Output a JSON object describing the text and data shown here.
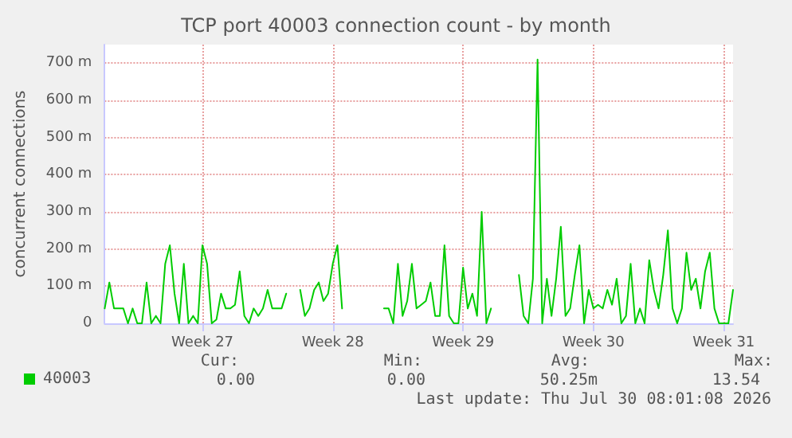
{
  "chart_data": {
    "type": "line",
    "title": "TCP port 40003 connection count - by month",
    "ylabel": "concurrent connections",
    "categories": [
      null,
      null,
      null,
      null,
      null,
      null,
      null,
      null,
      null,
      null,
      null,
      null,
      null,
      null,
      null,
      null,
      null,
      null,
      null,
      null,
      null,
      "Week 27",
      null,
      null,
      null,
      null,
      null,
      null,
      null,
      null,
      null,
      null,
      null,
      null,
      null,
      null,
      null,
      null,
      null,
      null,
      null,
      null,
      null,
      null,
      null,
      null,
      null,
      null,
      null,
      "Week 28",
      null,
      null,
      null,
      null,
      null,
      null,
      null,
      null,
      null,
      null,
      null,
      null,
      null,
      null,
      null,
      null,
      null,
      null,
      null,
      null,
      null,
      null,
      null,
      null,
      null,
      null,
      null,
      "Week 29",
      null,
      null,
      null,
      null,
      null,
      null,
      null,
      null,
      null,
      null,
      null,
      null,
      null,
      null,
      null,
      null,
      null,
      null,
      null,
      null,
      null,
      null,
      null,
      null,
      null,
      null,
      null,
      "Week 30",
      null,
      null,
      null,
      null,
      null,
      null,
      null,
      null,
      null,
      null,
      null,
      null,
      null,
      null,
      null,
      null,
      null,
      null,
      null,
      null,
      null,
      null,
      null,
      null,
      null,
      null,
      null,
      "Week 31",
      null,
      null
    ],
    "series": [
      {
        "name": "40003",
        "color": "#00cc00",
        "values": [
          40,
          110,
          40,
          40,
          40,
          0,
          40,
          0,
          0,
          110,
          0,
          20,
          0,
          160,
          210,
          80,
          0,
          160,
          0,
          20,
          0,
          210,
          160,
          0,
          10,
          80,
          40,
          40,
          50,
          140,
          20,
          0,
          40,
          20,
          40,
          90,
          40,
          40,
          40,
          80,
          null,
          null,
          90,
          20,
          40,
          90,
          110,
          60,
          80,
          160,
          210,
          40,
          null,
          null,
          null,
          null,
          null,
          null,
          null,
          null,
          40,
          40,
          0,
          160,
          20,
          60,
          160,
          40,
          50,
          60,
          110,
          20,
          20,
          210,
          20,
          0,
          0,
          150,
          40,
          80,
          20,
          300,
          0,
          40,
          null,
          null,
          null,
          null,
          null,
          130,
          20,
          0,
          120,
          710,
          0,
          120,
          20,
          120,
          260,
          20,
          40,
          130,
          210,
          0,
          90,
          40,
          50,
          40,
          90,
          50,
          120,
          0,
          20,
          160,
          0,
          40,
          0,
          170,
          90,
          40,
          130,
          250,
          40,
          0,
          40,
          190,
          90,
          120,
          40,
          140,
          190,
          40,
          0,
          0,
          0,
          90
        ]
      }
    ],
    "ylim": [
      0,
      750
    ],
    "yticks": [
      0,
      {
        "value": 100,
        "label": "100 m"
      },
      {
        "value": 200,
        "label": "200 m"
      },
      {
        "value": 300,
        "label": "300 m"
      },
      {
        "value": 400,
        "label": "400 m"
      },
      {
        "value": 500,
        "label": "500 m"
      },
      {
        "value": 600,
        "label": "600 m"
      },
      {
        "value": 700,
        "label": "700 m"
      }
    ],
    "grid": true,
    "legend": "bottom left",
    "marker": "none",
    "line_style": "solid",
    "annotations": [
      "Cur:",
      "Min:",
      "Avg:",
      "Max:",
      "0.00",
      "0.00",
      "50.25m",
      "13.54",
      "Last update: Thu Jul 30 08:01:08 2026"
    ]
  }
}
